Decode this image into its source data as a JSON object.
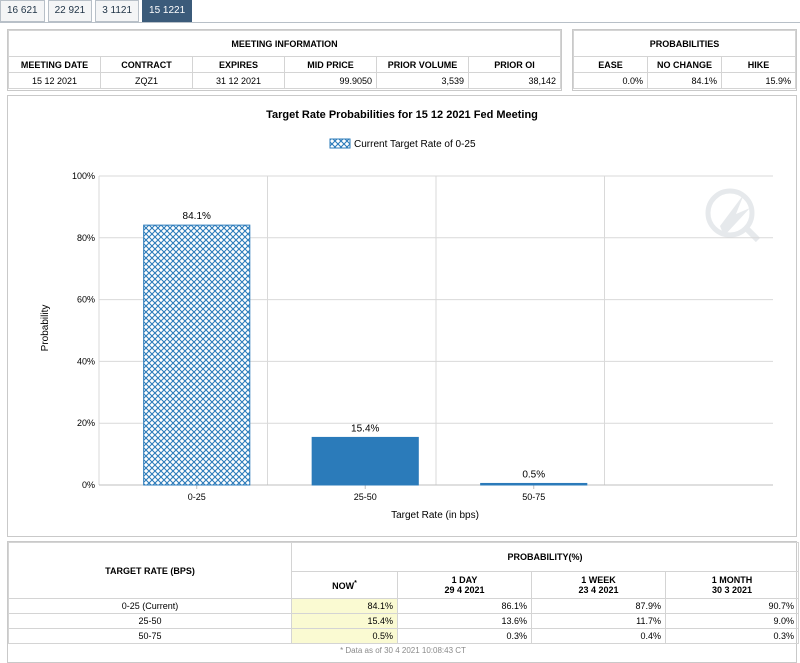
{
  "tabs": [
    "16 621",
    "22 921",
    "3 1121",
    "15 1221"
  ],
  "active_tab": 3,
  "meeting_info": {
    "title": "MEETING INFORMATION",
    "headers": [
      "MEETING DATE",
      "CONTRACT",
      "EXPIRES",
      "MID PRICE",
      "PRIOR VOLUME",
      "PRIOR OI"
    ],
    "values": [
      "15 12 2021",
      "ZQZ1",
      "31 12 2021",
      "99.9050",
      "3,539",
      "38,142"
    ]
  },
  "probabilities": {
    "title": "PROBABILITIES",
    "headers": [
      "EASE",
      "NO CHANGE",
      "HIKE"
    ],
    "values": [
      "0.0%",
      "84.1%",
      "15.9%"
    ]
  },
  "chart_data": {
    "type": "bar",
    "title": "Target Rate Probabilities for 15 12 2021 Fed Meeting",
    "legend": "Current Target Rate of 0-25",
    "xlabel": "Target Rate (in bps)",
    "ylabel": "Probability",
    "categories": [
      "0-25",
      "25-50",
      "50-75"
    ],
    "values": [
      84.1,
      15.4,
      0.5
    ],
    "value_labels": [
      "84.1%",
      "15.4%",
      "0.5%"
    ],
    "yticks": [
      "0%",
      "20%",
      "40%",
      "60%",
      "80%",
      "100%"
    ],
    "ylim": [
      0,
      100
    ],
    "grid": true,
    "legend_position": "top-center",
    "colors": {
      "bar": "#2b7bba",
      "current_pattern": "#2b7bba"
    }
  },
  "rate_table": {
    "col_header": "TARGET RATE (BPS)",
    "prob_header": "PROBABILITY(%)",
    "periods": [
      {
        "label": "NOW",
        "marker": "*",
        "date": ""
      },
      {
        "label": "1 DAY",
        "date": "29 4 2021"
      },
      {
        "label": "1 WEEK",
        "date": "23 4 2021"
      },
      {
        "label": "1 MONTH",
        "date": "30 3 2021"
      }
    ],
    "rows": [
      {
        "rate": "0-25 (Current)",
        "vals": [
          "84.1%",
          "86.1%",
          "87.9%",
          "90.7%"
        ]
      },
      {
        "rate": "25-50",
        "vals": [
          "15.4%",
          "13.6%",
          "11.7%",
          "9.0%"
        ]
      },
      {
        "rate": "50-75",
        "vals": [
          "0.5%",
          "0.3%",
          "0.4%",
          "0.3%"
        ]
      }
    ],
    "note": "* Data as of 30 4 2021 10:08:43 CT"
  }
}
